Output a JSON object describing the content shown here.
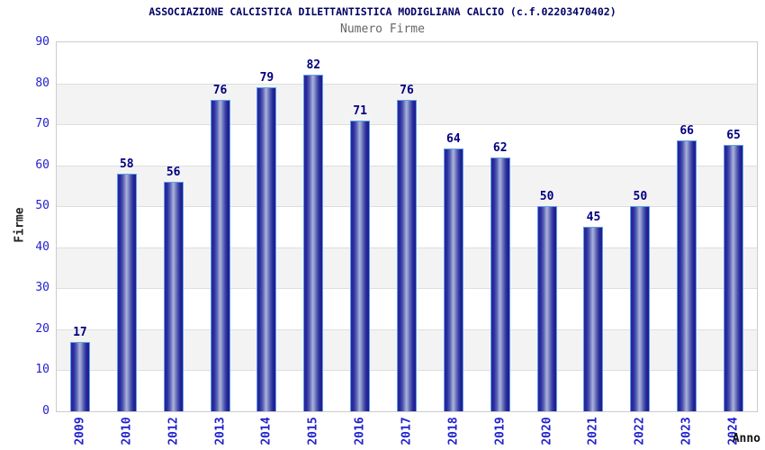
{
  "chart_data": {
    "type": "bar",
    "title": "ASSOCIAZIONE CALCISTICA DILETTANTISTICA MODIGLIANA CALCIO (c.f.02203470402)",
    "subtitle": "Numero Firme",
    "xlabel": "Anno",
    "ylabel": "Firme",
    "categories": [
      "2009",
      "2010",
      "2012",
      "2013",
      "2014",
      "2015",
      "2016",
      "2017",
      "2018",
      "2019",
      "2020",
      "2021",
      "2022",
      "2023",
      "2024"
    ],
    "values": [
      17,
      58,
      56,
      76,
      79,
      82,
      71,
      76,
      64,
      62,
      50,
      45,
      50,
      66,
      65
    ],
    "ylim": [
      0,
      90
    ],
    "ytick_step": 10,
    "grid": "horizontal gridlines every 10 with alternating white/gray bands",
    "legend": "none",
    "colors": {
      "bar_dark": "#24249a",
      "bar_highlight": "#aab0da",
      "bar_border": "#5f9fe8",
      "value_label": "#000080",
      "axis_tick_label": "#2222cc",
      "title": "#000066",
      "subtitle": "#666666",
      "band_gray": "#f3f3f3",
      "plot_border": "#cccccc"
    }
  }
}
